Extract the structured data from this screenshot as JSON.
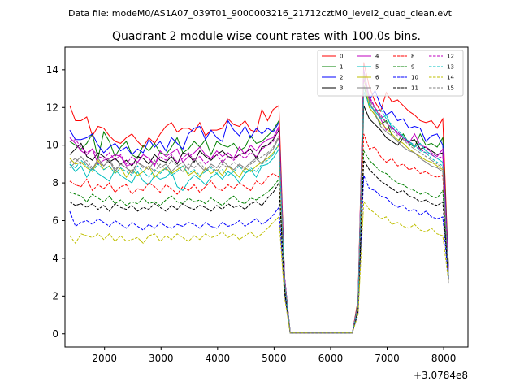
{
  "header": {
    "data_file": "Data file: modeM0/AS1A07_039T01_9000003216_21712cztM0_level2_quad_clean.evt"
  },
  "chart_data": {
    "type": "line",
    "title": "Quadrant 2 module wise count rates with 100.0s bins.",
    "xlabel": "",
    "ylabel": "",
    "x_offset_label": "+3.0784e8",
    "xlim": [
      1300,
      8430
    ],
    "ylim": [
      -0.7,
      15.2
    ],
    "x_ticks": [
      2000,
      3000,
      4000,
      5000,
      6000,
      7000,
      8000
    ],
    "x_tick_labels": [
      "2000",
      "3000",
      "4000",
      "5000",
      "6000",
      "7000",
      "8000"
    ],
    "y_ticks": [
      0,
      2,
      4,
      6,
      8,
      10,
      12,
      14
    ],
    "y_tick_labels": [
      "0",
      "2",
      "4",
      "6",
      "8",
      "10",
      "12",
      "14"
    ],
    "legend_position": "top-right",
    "x": [
      1385,
      1485,
      1585,
      1685,
      1785,
      1885,
      1985,
      2085,
      2185,
      2285,
      2385,
      2485,
      2585,
      2685,
      2785,
      2885,
      2985,
      3085,
      3185,
      3285,
      3385,
      3485,
      3585,
      3685,
      3785,
      3885,
      3985,
      4085,
      4185,
      4285,
      4385,
      4485,
      4585,
      4685,
      4785,
      4885,
      4985,
      5085,
      5185,
      5285,
      6385,
      6485,
      6585,
      6685,
      6785,
      6885,
      6985,
      7085,
      7185,
      7285,
      7385,
      7485,
      7585,
      7685,
      7785,
      7885,
      7985,
      8085
    ],
    "series": [
      {
        "name": "0",
        "color": "#ff0000",
        "dash": "solid",
        "values": [
          12.1,
          11.3,
          11.3,
          11.5,
          10.5,
          11.0,
          10.9,
          10.5,
          10.2,
          10.1,
          10.4,
          10.6,
          10.2,
          9.9,
          10.4,
          10.1,
          10.6,
          11.0,
          11.2,
          10.7,
          10.9,
          10.9,
          10.7,
          11.2,
          10.5,
          10.8,
          10.8,
          10.9,
          11.4,
          11.1,
          11.0,
          11.3,
          10.8,
          10.7,
          11.9,
          11.3,
          11.9,
          12.1,
          3.0,
          0.05,
          0.05,
          1.8,
          14.4,
          13.1,
          12.3,
          11.8,
          12.8,
          12.3,
          12.4,
          12.1,
          11.8,
          11.6,
          11.3,
          11.2,
          11.3,
          10.9,
          11.4,
          3.5
        ]
      },
      {
        "name": "1",
        "color": "#008000",
        "dash": "solid",
        "values": [
          10.2,
          10.0,
          9.8,
          10.1,
          10.6,
          9.3,
          10.7,
          10.2,
          9.4,
          9.9,
          10.2,
          9.5,
          9.3,
          10.0,
          9.7,
          10.1,
          9.6,
          9.5,
          9.9,
          10.4,
          9.6,
          9.8,
          10.2,
          9.9,
          10.3,
          9.5,
          10.2,
          10.0,
          9.9,
          10.1,
          9.7,
          9.9,
          10.5,
          10.1,
          10.2,
          10.5,
          10.8,
          11.3,
          3.0,
          0.05,
          0.05,
          1.7,
          13.2,
          12.0,
          11.6,
          11.1,
          11.3,
          10.5,
          10.2,
          10.6,
          10.1,
          9.9,
          10.6,
          10.0,
          10.1,
          9.9,
          10.4,
          3.6
        ]
      },
      {
        "name": "2",
        "color": "#0000ff",
        "dash": "solid",
        "values": [
          10.8,
          10.3,
          10.3,
          10.4,
          10.6,
          10.0,
          9.6,
          9.9,
          10.1,
          9.7,
          9.9,
          9.5,
          9.8,
          9.6,
          10.3,
          9.9,
          10.2,
          9.7,
          10.4,
          10.1,
          9.8,
          10.6,
          10.9,
          11.0,
          10.3,
          10.8,
          10.4,
          10.2,
          11.3,
          10.8,
          10.5,
          11.0,
          10.4,
          10.9,
          10.6,
          10.9,
          10.7,
          11.2,
          3.0,
          0.05,
          0.05,
          1.6,
          14.0,
          12.4,
          12.9,
          12.1,
          11.6,
          11.8,
          11.3,
          11.4,
          10.9,
          11.0,
          10.9,
          10.2,
          10.5,
          10.6,
          10.0,
          3.4
        ]
      },
      {
        "name": "3",
        "color": "#000000",
        "dash": "solid",
        "values": [
          9.5,
          9.8,
          10.1,
          9.4,
          9.2,
          9.6,
          9.4,
          9.1,
          9.3,
          9.0,
          9.2,
          8.9,
          9.4,
          9.3,
          9.0,
          9.5,
          9.2,
          9.1,
          9.4,
          9.0,
          9.6,
          9.5,
          9.1,
          9.7,
          9.4,
          9.2,
          9.5,
          9.7,
          9.4,
          9.3,
          9.5,
          9.6,
          9.8,
          9.3,
          9.9,
          10.0,
          10.3,
          10.8,
          2.9,
          0.05,
          0.05,
          1.5,
          12.1,
          11.4,
          11.1,
          10.8,
          10.4,
          10.2,
          10.0,
          10.4,
          10.2,
          10.3,
          9.8,
          9.9,
          9.7,
          9.5,
          9.6,
          3.3
        ]
      },
      {
        "name": "4",
        "color": "#bf00bf",
        "dash": "solid",
        "values": [
          10.4,
          10.1,
          9.7,
          9.5,
          9.8,
          9.0,
          9.2,
          9.3,
          9.5,
          9.4,
          8.9,
          9.0,
          9.1,
          9.5,
          9.3,
          8.9,
          9.7,
          9.4,
          9.6,
          9.8,
          9.1,
          9.4,
          9.6,
          9.9,
          9.5,
          9.3,
          9.7,
          9.4,
          9.6,
          9.3,
          9.9,
          9.5,
          10.0,
          9.7,
          10.1,
          10.3,
          10.4,
          11.0,
          3.0,
          0.05,
          0.05,
          1.6,
          14.0,
          12.5,
          12.0,
          11.4,
          10.8,
          11.0,
          10.6,
          10.4,
          10.1,
          10.6,
          10.0,
          9.9,
          9.6,
          9.4,
          9.8,
          3.4
        ]
      },
      {
        "name": "5",
        "color": "#00bfbf",
        "dash": "solid",
        "values": [
          9.0,
          8.6,
          8.9,
          8.3,
          8.8,
          8.5,
          8.3,
          8.1,
          8.7,
          8.4,
          8.2,
          8.0,
          8.6,
          8.1,
          7.9,
          8.4,
          8.2,
          8.3,
          8.6,
          7.8,
          7.6,
          8.1,
          8.4,
          8.2,
          7.9,
          8.3,
          8.5,
          8.2,
          8.6,
          8.4,
          8.0,
          8.5,
          8.7,
          8.3,
          8.9,
          9.0,
          9.3,
          9.8,
          2.7,
          0.05,
          0.05,
          1.4,
          12.8,
          12.2,
          11.8,
          11.4,
          11.6,
          10.9,
          10.7,
          10.4,
          10.2,
          9.9,
          10.1,
          9.7,
          9.5,
          9.3,
          9.1,
          3.2
        ]
      },
      {
        "name": "6",
        "color": "#bfbf00",
        "dash": "solid",
        "values": [
          9.3,
          9.0,
          9.1,
          8.8,
          8.6,
          9.2,
          8.7,
          8.9,
          8.5,
          8.8,
          8.3,
          8.7,
          8.4,
          8.6,
          8.9,
          8.3,
          8.6,
          8.8,
          8.5,
          8.7,
          8.9,
          8.4,
          8.6,
          8.3,
          8.8,
          8.5,
          8.7,
          8.4,
          8.9,
          8.6,
          8.3,
          8.8,
          8.6,
          8.9,
          9.1,
          9.3,
          9.6,
          10.0,
          2.8,
          0.05,
          0.05,
          1.5,
          13.6,
          12.0,
          11.6,
          11.2,
          10.9,
          10.6,
          10.3,
          10.1,
          9.8,
          9.6,
          9.4,
          9.2,
          9.1,
          8.9,
          8.7,
          3.1
        ]
      },
      {
        "name": "7",
        "color": "#808080",
        "dash": "solid",
        "values": [
          8.8,
          9.1,
          9.4,
          9.0,
          8.7,
          9.3,
          8.9,
          9.2,
          8.6,
          9.0,
          8.8,
          8.5,
          9.1,
          8.9,
          8.7,
          9.2,
          8.8,
          9.0,
          8.6,
          8.9,
          9.1,
          8.7,
          9.3,
          8.9,
          8.6,
          9.0,
          8.8,
          9.2,
          8.9,
          8.7,
          9.0,
          8.8,
          9.1,
          9.3,
          9.0,
          9.5,
          9.8,
          10.4,
          2.8,
          0.05,
          0.05,
          1.5,
          13.8,
          12.3,
          11.7,
          11.0,
          10.7,
          10.5,
          10.2,
          9.9,
          9.7,
          9.6,
          9.3,
          9.1,
          8.9,
          8.8,
          8.6,
          2.7
        ]
      },
      {
        "name": "8",
        "color": "#ff0000",
        "dash": "dashed",
        "values": [
          8.1,
          7.9,
          7.8,
          8.2,
          7.6,
          7.9,
          7.7,
          8.0,
          7.5,
          7.8,
          7.9,
          7.4,
          7.7,
          7.6,
          8.0,
          7.8,
          7.5,
          7.9,
          7.7,
          7.4,
          7.8,
          7.6,
          7.9,
          7.5,
          7.8,
          8.1,
          7.7,
          7.6,
          7.9,
          7.7,
          8.0,
          7.8,
          7.6,
          8.1,
          7.9,
          8.3,
          8.5,
          8.3,
          2.5,
          0.05,
          0.05,
          1.3,
          10.6,
          9.8,
          9.9,
          9.4,
          9.1,
          9.3,
          8.9,
          9.0,
          8.7,
          8.8,
          8.5,
          8.6,
          8.4,
          8.3,
          8.4,
          3.0
        ]
      },
      {
        "name": "9",
        "color": "#008000",
        "dash": "dashed",
        "values": [
          7.5,
          7.4,
          7.3,
          7.0,
          7.4,
          7.2,
          7.0,
          7.3,
          6.9,
          7.1,
          6.8,
          7.0,
          6.9,
          7.2,
          6.9,
          7.0,
          6.8,
          7.1,
          7.3,
          7.0,
          6.9,
          7.2,
          7.0,
          7.1,
          6.9,
          7.2,
          7.0,
          6.8,
          7.1,
          7.3,
          7.0,
          6.9,
          7.2,
          7.1,
          7.3,
          7.5,
          7.8,
          8.2,
          2.4,
          0.05,
          0.05,
          1.3,
          9.7,
          9.2,
          8.9,
          8.6,
          8.5,
          8.2,
          8.0,
          7.9,
          7.7,
          7.6,
          7.4,
          7.5,
          7.3,
          7.2,
          7.6,
          3.0
        ]
      },
      {
        "name": "10",
        "color": "#0000ff",
        "dash": "dashed",
        "values": [
          6.5,
          5.7,
          5.9,
          6.0,
          5.8,
          6.1,
          5.9,
          5.7,
          6.0,
          5.8,
          5.6,
          5.9,
          5.7,
          5.5,
          5.8,
          5.6,
          5.9,
          5.7,
          5.6,
          5.8,
          5.7,
          5.9,
          5.8,
          5.6,
          5.9,
          5.7,
          5.6,
          5.9,
          5.7,
          5.8,
          6.0,
          5.7,
          5.9,
          6.1,
          5.8,
          6.0,
          6.3,
          6.7,
          2.1,
          0.05,
          0.05,
          1.1,
          8.4,
          7.7,
          7.6,
          7.3,
          7.2,
          6.9,
          6.7,
          6.8,
          6.5,
          6.6,
          6.3,
          6.5,
          6.2,
          6.1,
          6.2,
          2.9
        ]
      },
      {
        "name": "11",
        "color": "#000000",
        "dash": "dashed",
        "values": [
          7.0,
          6.8,
          6.9,
          6.7,
          6.9,
          6.6,
          6.8,
          6.5,
          6.9,
          6.7,
          6.6,
          6.8,
          6.5,
          6.7,
          6.6,
          6.9,
          6.7,
          6.5,
          6.8,
          6.6,
          6.9,
          6.7,
          6.6,
          6.8,
          6.7,
          6.5,
          6.8,
          6.6,
          6.9,
          6.7,
          6.8,
          6.6,
          6.9,
          7.0,
          6.8,
          7.2,
          7.5,
          8.0,
          2.3,
          0.05,
          0.05,
          1.2,
          9.2,
          8.7,
          8.4,
          8.1,
          7.9,
          7.7,
          7.5,
          7.6,
          7.3,
          7.2,
          7.0,
          7.1,
          6.9,
          6.8,
          7.0,
          2.9
        ]
      },
      {
        "name": "12",
        "color": "#bf00bf",
        "dash": "dashed",
        "values": [
          10.2,
          10.3,
          9.9,
          9.6,
          9.8,
          9.4,
          9.3,
          9.6,
          9.2,
          9.5,
          9.0,
          9.4,
          9.1,
          9.5,
          9.3,
          9.0,
          9.4,
          9.2,
          9.5,
          9.1,
          9.3,
          9.6,
          9.2,
          9.4,
          9.0,
          9.3,
          9.5,
          9.1,
          9.4,
          9.2,
          9.5,
          9.3,
          9.6,
          9.4,
          9.8,
          10.0,
          10.2,
          10.9,
          3.0,
          0.05,
          0.05,
          1.6,
          13.5,
          12.6,
          12.0,
          11.6,
          11.2,
          10.9,
          10.7,
          10.4,
          10.2,
          10.0,
          9.8,
          9.6,
          9.5,
          9.3,
          9.4,
          3.3
        ]
      },
      {
        "name": "13",
        "color": "#00bfbf",
        "dash": "dashed",
        "values": [
          9.0,
          8.8,
          9.2,
          8.9,
          8.6,
          9.0,
          8.7,
          8.9,
          8.5,
          8.8,
          8.6,
          8.4,
          8.9,
          8.6,
          8.3,
          8.7,
          8.5,
          8.8,
          8.4,
          8.6,
          8.9,
          8.5,
          8.7,
          8.4,
          8.6,
          8.8,
          8.5,
          8.7,
          8.4,
          8.6,
          8.9,
          8.5,
          8.8,
          8.6,
          9.0,
          9.2,
          9.5,
          10.1,
          2.8,
          0.05,
          0.05,
          1.5,
          12.9,
          12.1,
          11.8,
          11.9,
          11.4,
          11.1,
          10.8,
          10.5,
          10.2,
          10.0,
          9.7,
          9.6,
          9.3,
          9.1,
          8.9,
          3.1
        ]
      },
      {
        "name": "14",
        "color": "#bfbf00",
        "dash": "dashed",
        "values": [
          5.2,
          4.8,
          5.3,
          5.2,
          5.1,
          5.3,
          5.0,
          5.3,
          4.9,
          5.2,
          4.9,
          5.0,
          5.1,
          4.8,
          5.2,
          5.3,
          4.9,
          5.2,
          5.0,
          5.3,
          5.1,
          4.9,
          5.2,
          5.0,
          5.3,
          5.1,
          5.2,
          5.4,
          5.1,
          5.3,
          5.0,
          5.2,
          5.4,
          5.1,
          5.3,
          5.6,
          5.9,
          6.2,
          1.9,
          0.05,
          0.05,
          1.0,
          7.0,
          6.6,
          6.4,
          6.1,
          6.2,
          5.8,
          5.9,
          5.7,
          5.6,
          5.8,
          5.5,
          5.4,
          5.6,
          5.3,
          5.2,
          2.8
        ]
      },
      {
        "name": "15",
        "color": "#808080",
        "dash": "dashed",
        "values": [
          9.1,
          9.3,
          9.0,
          9.2,
          8.8,
          9.1,
          8.9,
          9.3,
          8.7,
          9.0,
          8.8,
          8.6,
          9.1,
          8.8,
          8.9,
          8.6,
          9.0,
          8.7,
          9.2,
          8.9,
          8.6,
          9.0,
          8.8,
          9.1,
          8.7,
          8.9,
          8.6,
          9.0,
          8.8,
          9.1,
          8.9,
          8.7,
          9.0,
          9.2,
          9.4,
          9.6,
          9.9,
          10.5,
          2.9,
          0.05,
          0.05,
          1.5,
          13.2,
          12.4,
          11.9,
          11.5,
          11.2,
          10.8,
          10.5,
          10.3,
          10.0,
          9.8,
          9.6,
          9.4,
          9.2,
          9.0,
          8.8,
          3.1
        ]
      }
    ]
  }
}
